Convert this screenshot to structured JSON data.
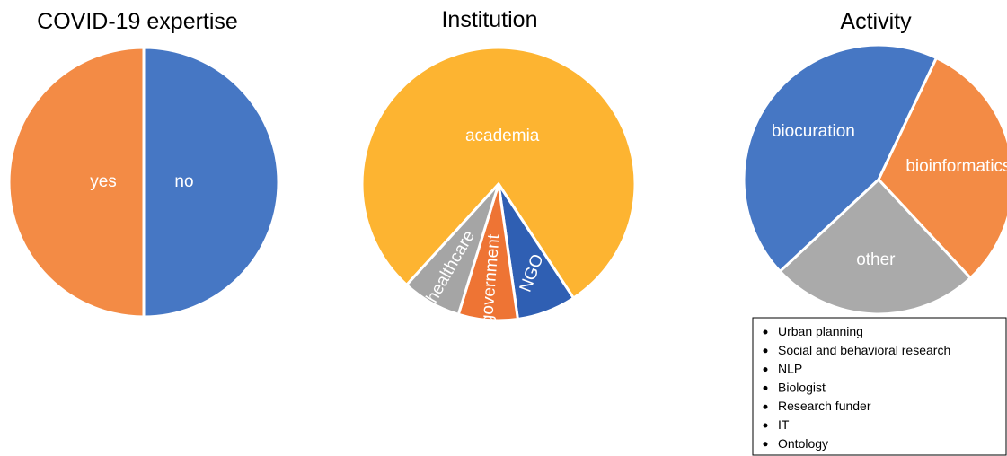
{
  "chart_data": [
    {
      "type": "pie",
      "title": "COVID-19 expertise",
      "categories": [
        "no",
        "yes"
      ],
      "values": [
        50,
        50
      ],
      "colors": [
        "#4677c4",
        "#f38b45"
      ]
    },
    {
      "type": "pie",
      "title": "Institution",
      "categories": [
        "academia",
        "NGO",
        "government",
        "healthcare"
      ],
      "values": [
        79,
        7,
        7,
        7
      ],
      "colors": [
        "#fdb431",
        "#2f5fb3",
        "#ee7434",
        "#a5a5a5"
      ]
    },
    {
      "type": "pie",
      "title": "Activity",
      "categories": [
        "bioinformatics",
        "other",
        "biocuration"
      ],
      "values": [
        31,
        25,
        44
      ],
      "colors": [
        "#f38b45",
        "#aaaaaa",
        "#4677c4"
      ]
    }
  ],
  "legend_box": {
    "items": [
      "Urban planning",
      "Social and behavioral research",
      "NLP",
      "Biologist",
      "Research funder",
      "IT",
      "Ontology"
    ]
  }
}
